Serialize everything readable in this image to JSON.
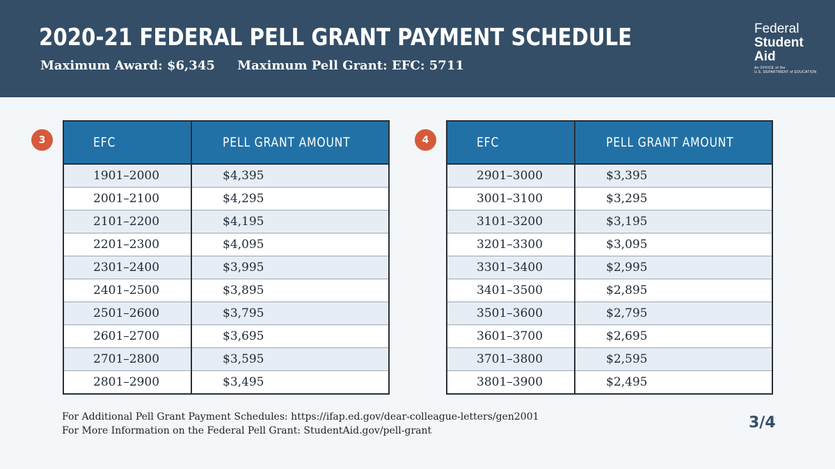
{
  "header": {
    "title": "2020-21 FEDERAL PELL GRANT PAYMENT SCHEDULE",
    "max_award": "Maximum Award: $6,345",
    "max_pell_efc": "Maximum Pell Grant: EFC: 5711"
  },
  "logo": {
    "line1": "Federal",
    "line2": "Student",
    "line3": "Aid",
    "line4": "An OFFICE of the",
    "line5": "U.S. DEPARTMENT of EDUCATION"
  },
  "tables": [
    {
      "badge": "3",
      "headers": [
        "EFC",
        "PELL GRANT AMOUNT"
      ],
      "rows": [
        [
          "1901–2000",
          "$4,395"
        ],
        [
          "2001–2100",
          "$4,295"
        ],
        [
          "2101–2200",
          "$4,195"
        ],
        [
          "2201–2300",
          "$4,095"
        ],
        [
          "2301–2400",
          "$3,995"
        ],
        [
          "2401–2500",
          "$3,895"
        ],
        [
          "2501–2600",
          "$3,795"
        ],
        [
          "2601–2700",
          "$3,695"
        ],
        [
          "2701–2800",
          "$3,595"
        ],
        [
          "2801–2900",
          "$3,495"
        ]
      ]
    },
    {
      "badge": "4",
      "headers": [
        "EFC",
        "PELL GRANT AMOUNT"
      ],
      "rows": [
        [
          "2901–3000",
          "$3,395"
        ],
        [
          "3001–3100",
          "$3,295"
        ],
        [
          "3101–3200",
          "$3,195"
        ],
        [
          "3201–3300",
          "$3,095"
        ],
        [
          "3301–3400",
          "$2,995"
        ],
        [
          "3401–3500",
          "$2,895"
        ],
        [
          "3501–3600",
          "$2,795"
        ],
        [
          "3601–3700",
          "$2,695"
        ],
        [
          "3701–3800",
          "$2,595"
        ],
        [
          "3801–3900",
          "$2,495"
        ]
      ]
    }
  ],
  "footer": {
    "line1": "For Additional Pell Grant Payment Schedules: https://ifap.ed.gov/dear-colleague-letters/gen2001",
    "line2": "For More Information on the Federal Pell Grant: StudentAid.gov/pell-grant"
  },
  "page": {
    "number": "3/4"
  },
  "colors": {
    "header_bg": "#344e67",
    "table_header_bg": "#2271a6",
    "badge_bg": "#d65a3b",
    "stripe_row": "#e6edf4"
  }
}
